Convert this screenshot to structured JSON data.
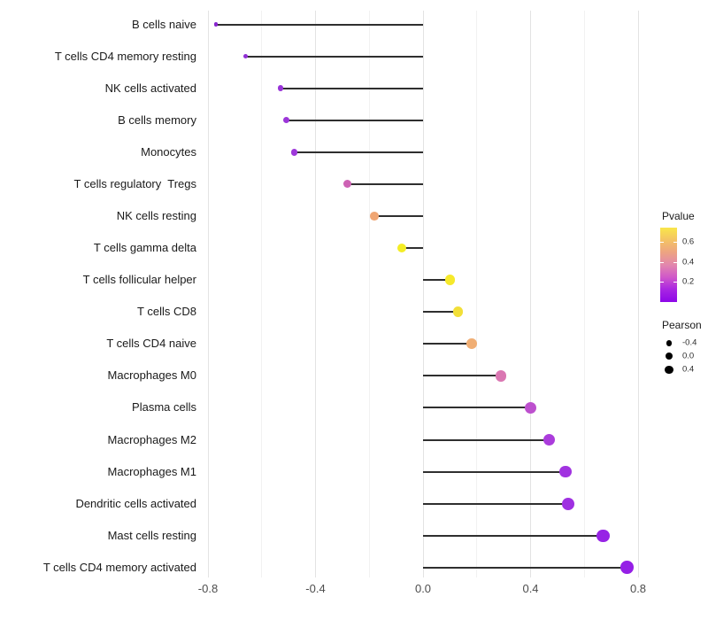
{
  "chart_data": {
    "type": "scatter",
    "subtype": "lollipop",
    "title": "",
    "xlabel": "",
    "ylabel": "",
    "xlim": [
      -0.9,
      0.87
    ],
    "x_tick_labels": [
      "-0.8",
      "-0.4",
      "0.0",
      "0.4",
      "0.8"
    ],
    "x_tick_values": [
      -0.8,
      -0.4,
      0.0,
      0.4,
      0.8
    ],
    "x_minor_tick_values": [
      -0.6,
      -0.2,
      0.2,
      0.6
    ],
    "grid": "vertical-only",
    "baseline_x": 0.0,
    "categories": [
      "B cells naive",
      "T cells CD4 memory resting",
      "NK cells activated",
      "B cells memory",
      "Monocytes",
      "T cells regulatory  Tregs",
      "NK cells resting",
      "T cells gamma delta",
      "T cells follicular helper",
      "T cells CD8",
      "T cells CD4 naive",
      "Macrophages M0",
      "Plasma cells",
      "Macrophages M2",
      "Macrophages M1",
      "Dendritic cells activated",
      "Mast cells resting",
      "T cells CD4 memory activated"
    ],
    "points": [
      {
        "label": "B cells naive",
        "pearson": -0.77,
        "pvalue": 0.04,
        "color": "#8826cf"
      },
      {
        "label": "T cells CD4 memory resting",
        "pearson": -0.66,
        "pvalue": 0.07,
        "color": "#9130d6"
      },
      {
        "label": "NK cells activated",
        "pearson": -0.53,
        "pvalue": 0.09,
        "color": "#9833d8"
      },
      {
        "label": "B cells memory",
        "pearson": -0.51,
        "pvalue": 0.1,
        "color": "#9c36d9"
      },
      {
        "label": "Monocytes",
        "pearson": -0.48,
        "pvalue": 0.1,
        "color": "#9e38da"
      },
      {
        "label": "T cells regulatory  Tregs",
        "pearson": -0.28,
        "pvalue": 0.33,
        "color": "#cd62b4"
      },
      {
        "label": "NK cells resting",
        "pearson": -0.18,
        "pvalue": 0.48,
        "color": "#f0a673"
      },
      {
        "label": "T cells gamma delta",
        "pearson": -0.08,
        "pvalue": 0.66,
        "color": "#f4ed25"
      },
      {
        "label": "T cells follicular helper",
        "pearson": 0.1,
        "pvalue": 0.68,
        "color": "#f6e92b"
      },
      {
        "label": "T cells CD8",
        "pearson": 0.13,
        "pvalue": 0.62,
        "color": "#f2df38"
      },
      {
        "label": "T cells CD4 naive",
        "pearson": 0.18,
        "pvalue": 0.47,
        "color": "#f0ae74"
      },
      {
        "label": "Macrophages M0",
        "pearson": 0.29,
        "pvalue": 0.34,
        "color": "#da77b2"
      },
      {
        "label": "Plasma cells",
        "pearson": 0.4,
        "pvalue": 0.24,
        "color": "#bd50ce"
      },
      {
        "label": "Macrophages M2",
        "pearson": 0.47,
        "pvalue": 0.15,
        "color": "#ab3cdc"
      },
      {
        "label": "Macrophages M1",
        "pearson": 0.53,
        "pvalue": 0.12,
        "color": "#a133e0"
      },
      {
        "label": "Dendritic cells activated",
        "pearson": 0.54,
        "pvalue": 0.11,
        "color": "#9f30e1"
      },
      {
        "label": "Mast cells resting",
        "pearson": 0.67,
        "pvalue": 0.07,
        "color": "#9723e5"
      },
      {
        "label": "T cells CD4 memory activated",
        "pearson": 0.76,
        "pvalue": 0.06,
        "color": "#951fe6"
      }
    ],
    "legend": {
      "position": "right",
      "pvalue": {
        "title": "Pvalue",
        "tick_labels": [
          "0.6",
          "0.4",
          "0.2"
        ],
        "range": [
          0.0,
          0.74
        ],
        "gradient_top_to_bottom": [
          "#f9e64a",
          "#f4c364",
          "#eda382",
          "#e287ad",
          "#d058c9",
          "#a825e2",
          "#8d07e8"
        ]
      },
      "pearson": {
        "title": "Pearson",
        "items": [
          {
            "label": "-0.4",
            "value": -0.4
          },
          {
            "label": "0.0",
            "value": 0.0
          },
          {
            "label": "0.4",
            "value": 0.4
          }
        ]
      }
    },
    "colors": {
      "stem": "#2f2f2f",
      "grid_major": "#e3e3e3",
      "grid_minor": "#f1f1f1",
      "axis_text": "#4d4d4d",
      "label_text": "#1a1a1a",
      "background": "#ffffff"
    }
  }
}
